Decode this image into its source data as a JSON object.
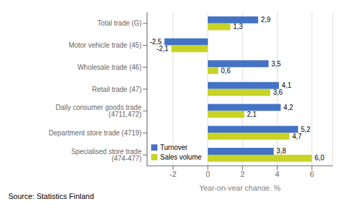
{
  "chart_data": {
    "type": "bar",
    "orientation": "horizontal",
    "categories": [
      "Specialised store trade (474-477)",
      "Department store trade (4719)",
      "Daily consumer goods trade (4711,472)",
      "Retail trade (47)",
      "Wholesale trade (46)",
      "Motor vehicle trade (45)",
      "Total trade (G)"
    ],
    "series": [
      {
        "name": "Turnover",
        "color": "#4472C4",
        "values": [
          3.8,
          5.2,
          4.2,
          4.1,
          3.5,
          -2.5,
          2.9
        ],
        "value_labels": [
          "3,8",
          "5,2",
          "4,2",
          "4,1",
          "3,5",
          "-2,5",
          "2,9"
        ]
      },
      {
        "name": "Sales volume",
        "color": "#C7D325",
        "values": [
          6.0,
          4.7,
          2.1,
          3.6,
          0.6,
          -2.1,
          1.3
        ],
        "value_labels": [
          "6,0",
          "4,7",
          "2,1",
          "3,6",
          "0,6",
          "-2,1",
          "1,3"
        ]
      }
    ],
    "xlabel": "Year-on-year change, %",
    "xlim": [
      -3.5,
      7.2
    ],
    "xticks": [
      -2,
      0,
      2,
      4,
      6
    ],
    "grid": true,
    "legend": "lower left",
    "data_labels": true,
    "annotations": [
      "Source: Statistics Finland"
    ]
  }
}
